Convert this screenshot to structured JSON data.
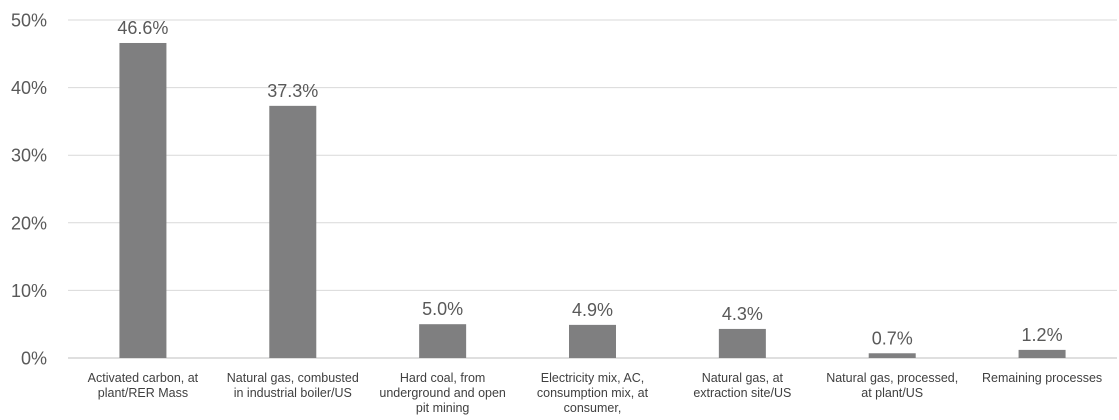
{
  "chart_data": {
    "type": "bar",
    "categories": [
      [
        "Activated carbon, at",
        "plant/RER Mass"
      ],
      [
        "Natural gas, combusted",
        "in industrial boiler/US"
      ],
      [
        "Hard coal, from",
        "underground and open",
        "pit mining"
      ],
      [
        "Electricity mix, AC,",
        "consumption mix, at",
        "consumer,"
      ],
      [
        "Natural gas, at",
        "extraction site/US"
      ],
      [
        "Natural gas, processed,",
        "at plant/US"
      ],
      [
        "Remaining processes"
      ]
    ],
    "values": [
      46.6,
      37.3,
      5.0,
      4.9,
      4.3,
      0.7,
      1.2
    ],
    "value_labels": [
      "46.6%",
      "37.3%",
      "5.0%",
      "4.9%",
      "4.3%",
      "0.7%",
      "1.2%"
    ],
    "ylim": [
      0,
      50
    ],
    "yticks": [
      0,
      10,
      20,
      30,
      40,
      50
    ],
    "ytick_labels": [
      "0%",
      "10%",
      "20%",
      "30%",
      "40%",
      "50%"
    ],
    "grid": true,
    "legend": "none",
    "bar_color": "#7f7f80"
  }
}
